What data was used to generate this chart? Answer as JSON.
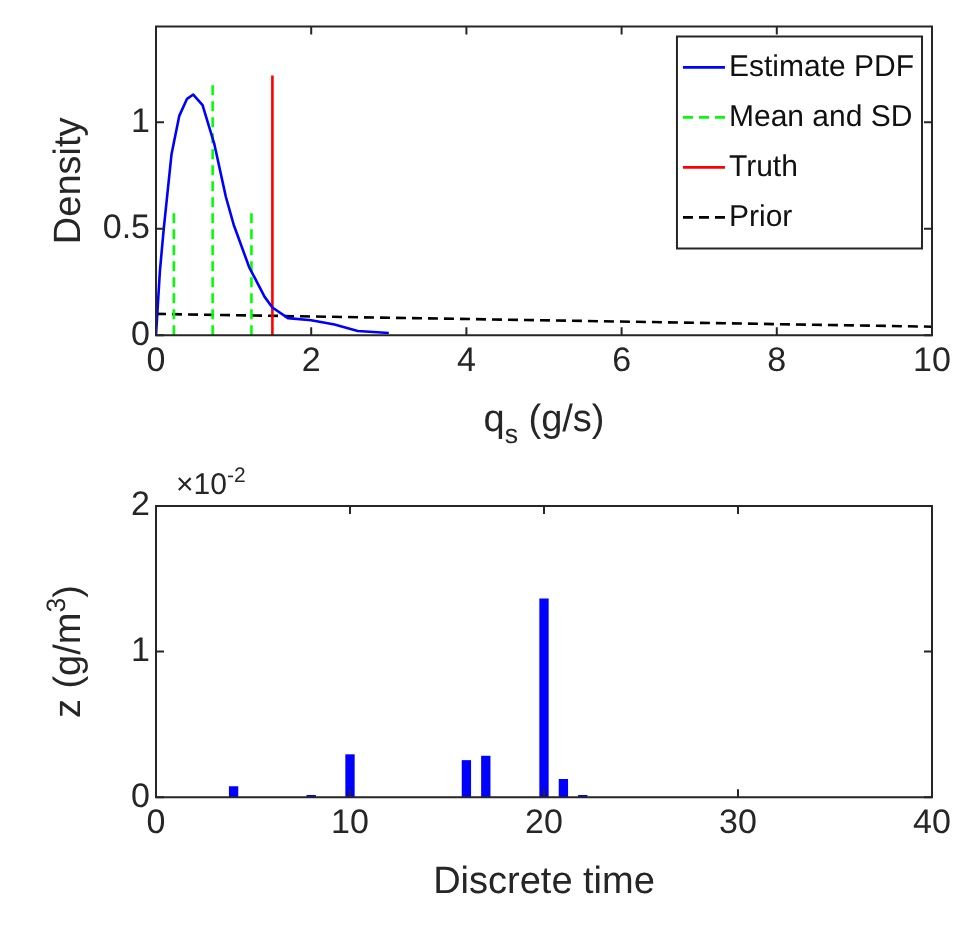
{
  "chart_data": [
    {
      "type": "line",
      "xlabel": "q$_{s}$ (g/s)",
      "ylabel": "Density",
      "xlim": [
        0,
        10
      ],
      "xticks": [
        0,
        2,
        4,
        6,
        8,
        10
      ],
      "ylim": [
        0,
        1.45
      ],
      "yticks": [
        0,
        0.5,
        1
      ],
      "grid": false,
      "legend": "top right",
      "marker": "none",
      "series": [
        {
          "name": "Estimate PDF",
          "color": "#0000ff",
          "line_style": "solid",
          "x": [
            0,
            0.05,
            0.1,
            0.2,
            0.3,
            0.4,
            0.48,
            0.6,
            0.75,
            0.9,
            1.0,
            1.2,
            1.4,
            1.5,
            1.7,
            2.0,
            2.3,
            2.6,
            3.0
          ],
          "values": [
            0,
            0.3,
            0.5,
            0.85,
            1.03,
            1.11,
            1.13,
            1.08,
            0.9,
            0.65,
            0.52,
            0.32,
            0.18,
            0.13,
            0.08,
            0.07,
            0.05,
            0.02,
            0.01
          ]
        },
        {
          "name": "Mean and SD",
          "color": "#00ff00",
          "line_style": "dashed",
          "x": [
            0.73,
            0.73
          ],
          "values": [
            0,
            1.2
          ]
        },
        {
          "color": "#00ff00",
          "line_style": "dashed",
          "x": [
            0.23,
            0.23
          ],
          "values": [
            0,
            0.58
          ]
        },
        {
          "color": "#00ff00",
          "line_style": "dashed",
          "x": [
            1.23,
            1.23
          ],
          "values": [
            0,
            0.58
          ]
        },
        {
          "name": "Truth",
          "color": "#ff0000",
          "line_style": "solid",
          "x": [
            1.5,
            1.5
          ],
          "values": [
            0,
            1.22
          ]
        },
        {
          "name": "Prior",
          "color": "#000000",
          "line_style": "dashed",
          "x": [
            0,
            10
          ],
          "values": [
            0.1,
            0.04
          ]
        }
      ]
    },
    {
      "type": "bar",
      "xlabel": "Discrete time",
      "ylabel": "z (g/m$^{3}$)",
      "xlim": [
        0,
        40
      ],
      "xticks": [
        0,
        10,
        20,
        30,
        40
      ],
      "ylim": [
        0,
        2
      ],
      "yticks": [
        0,
        1,
        2
      ],
      "grid": false,
      "annotations": [
        "×10$^{-2}$"
      ],
      "x": [
        4,
        8,
        10,
        16,
        17,
        20,
        21,
        22
      ],
      "values": [
        0.07,
        0.01,
        0.29,
        0.25,
        0.28,
        1.36,
        0.12,
        0.01
      ],
      "color": "#0000ff"
    }
  ]
}
